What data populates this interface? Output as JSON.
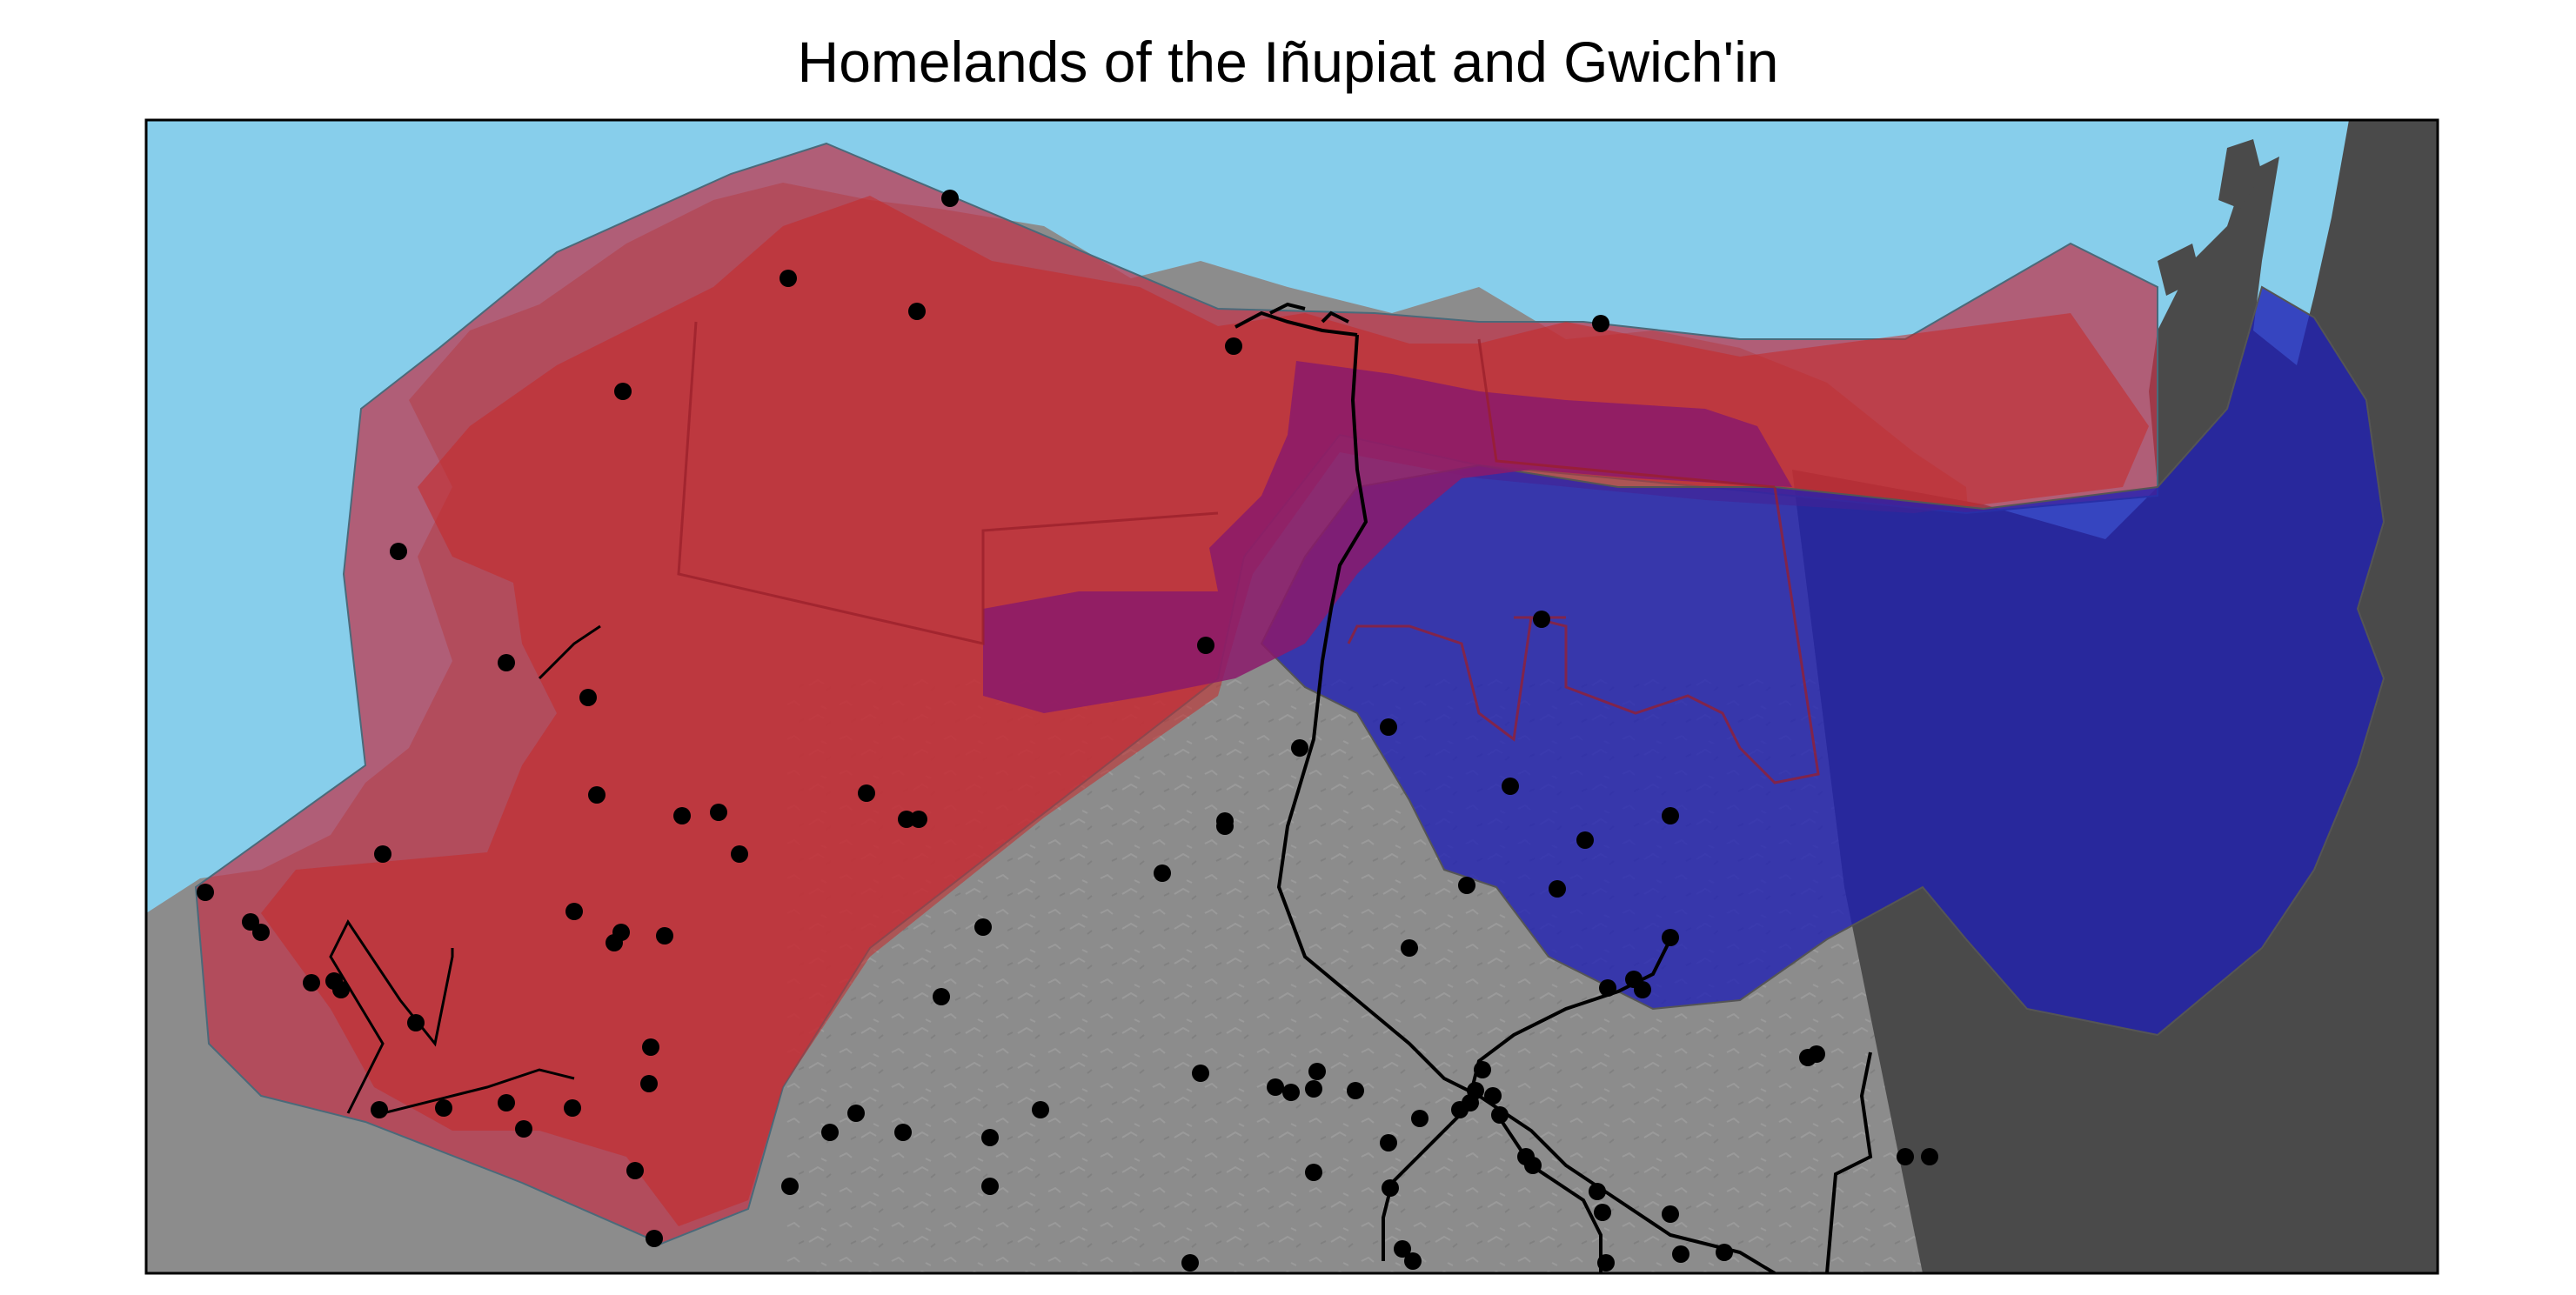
{
  "title": "Homelands of the Iñupiat and Gwich'in",
  "colors": {
    "ocean": "#87CEEB",
    "land": "#8c8c8c",
    "foreign_land": "#4a4a4a",
    "inupiat": "#c0334a",
    "inupiat_core": "#c62828",
    "gwichin": "#1f1fb4",
    "overlap": "#8b1a6b",
    "roads": "#000000",
    "towns": "#000000"
  },
  "regions": [
    {
      "id": "inupiat-homeland",
      "color_key": "inupiat"
    },
    {
      "id": "gwichin-homeland",
      "color_key": "gwichin"
    },
    {
      "id": "homeland-overlap",
      "color_key": "overlap"
    }
  ]
}
